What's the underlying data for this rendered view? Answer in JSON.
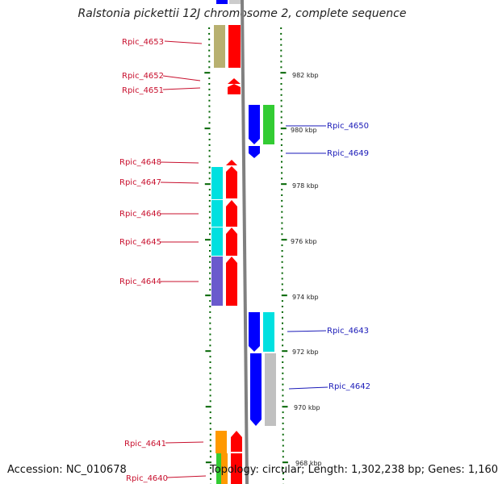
{
  "title": "Ralstonia pickettii 12J chromosome 2, complete sequence",
  "accession": "Accession: NC_010678",
  "topology": "Topology: circular; Length: 1,302,238 bp; Genes: 1,160",
  "scale_labels": [
    "982 kbp",
    "980 kbp",
    "978 kbp",
    "976 kbp",
    "974 kbp",
    "972 kbp",
    "970 kbp",
    "968 kbp"
  ],
  "left_genes": [
    "Rpic_4653",
    "Rpic_4652",
    "Rpic_4651",
    "Rpic_4648",
    "Rpic_4647",
    "Rpic_4646",
    "Rpic_4645",
    "Rpic_4644",
    "Rpic_4641",
    "Rpic_4640"
  ],
  "right_genes": [
    "Rpic_4650",
    "Rpic_4649",
    "Rpic_4643",
    "Rpic_4642"
  ],
  "colors": {
    "label_left": "#c8102e",
    "label_right": "#1a1ab8",
    "forward_gene": "#ff0000",
    "reverse_gene": "#0000ff",
    "ticks": "#006400",
    "backbone": "#808080"
  }
}
